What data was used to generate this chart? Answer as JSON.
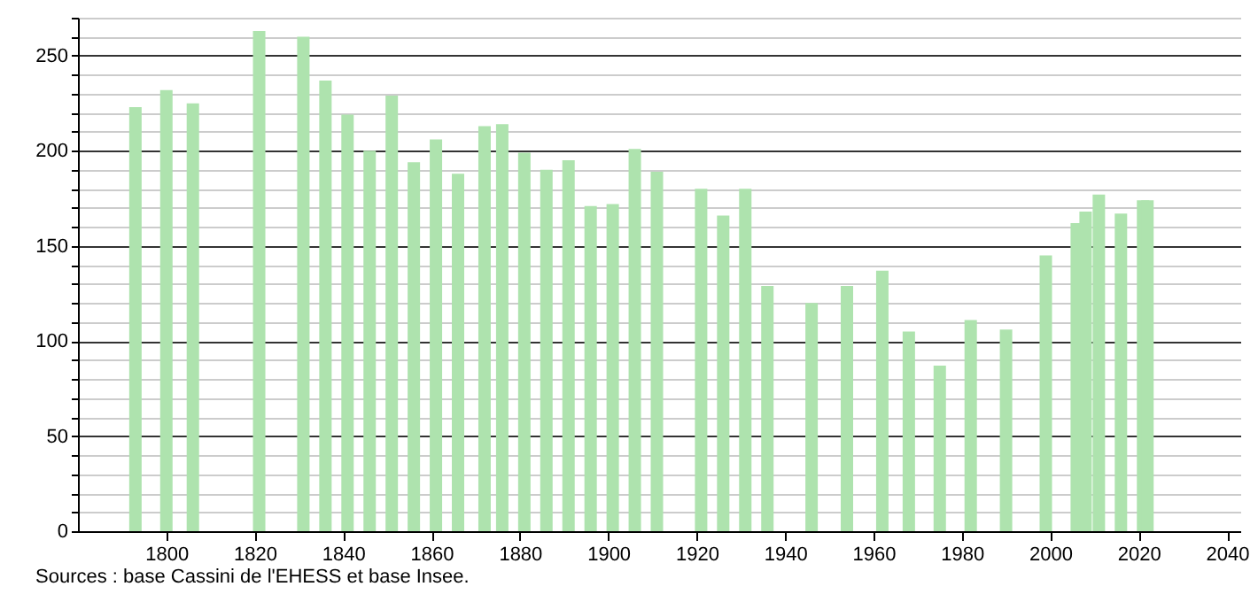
{
  "chart_data": {
    "type": "bar",
    "color": "#aee3ae",
    "x": [
      1793,
      1800,
      1806,
      1821,
      1831,
      1836,
      1841,
      1846,
      1851,
      1856,
      1861,
      1866,
      1872,
      1876,
      1881,
      1886,
      1891,
      1896,
      1901,
      1906,
      1911,
      1921,
      1926,
      1931,
      1936,
      1946,
      1954,
      1962,
      1968,
      1975,
      1982,
      1990,
      1999,
      2006,
      2008,
      2011,
      2016,
      2021,
      2022
    ],
    "values": [
      223,
      232,
      225,
      263,
      260,
      237,
      219,
      200,
      229,
      194,
      206,
      188,
      213,
      214,
      199,
      190,
      195,
      171,
      172,
      201,
      189,
      180,
      166,
      180,
      129,
      120,
      129,
      137,
      105,
      87,
      111,
      106,
      145,
      162,
      168,
      177,
      167,
      174,
      174
    ],
    "xlim": [
      1780,
      2043
    ],
    "xticks": [
      1800,
      1820,
      1840,
      1860,
      1880,
      1900,
      1920,
      1940,
      1960,
      1980,
      2000,
      2020,
      2040
    ],
    "ylim": [
      0,
      270
    ],
    "yticks": [
      0,
      {
        "value": 10,
        "label": null
      },
      {
        "value": 20,
        "label": null
      },
      {
        "value": 30,
        "label": null
      },
      {
        "value": 40,
        "label": null
      },
      50,
      {
        "value": 60,
        "label": null
      },
      {
        "value": 70,
        "label": null
      },
      {
        "value": 80,
        "label": null
      },
      {
        "value": 90,
        "label": null
      },
      100,
      {
        "value": 110,
        "label": null
      },
      {
        "value": 120,
        "label": null
      },
      {
        "value": 130,
        "label": null
      },
      {
        "value": 140,
        "label": null
      },
      150,
      {
        "value": 160,
        "label": null
      },
      {
        "value": 170,
        "label": null
      },
      {
        "value": 180,
        "label": null
      },
      {
        "value": 190,
        "label": null
      },
      200,
      {
        "value": 210,
        "label": null
      },
      {
        "value": 220,
        "label": null
      },
      {
        "value": 230,
        "label": null
      },
      {
        "value": 240,
        "label": null
      },
      250,
      {
        "value": 260,
        "label": null
      },
      {
        "value": 270,
        "label": null
      }
    ],
    "grid": "y",
    "annotations": [
      "Sources : base Cassini de l'EHESS et base Insee."
    ]
  }
}
